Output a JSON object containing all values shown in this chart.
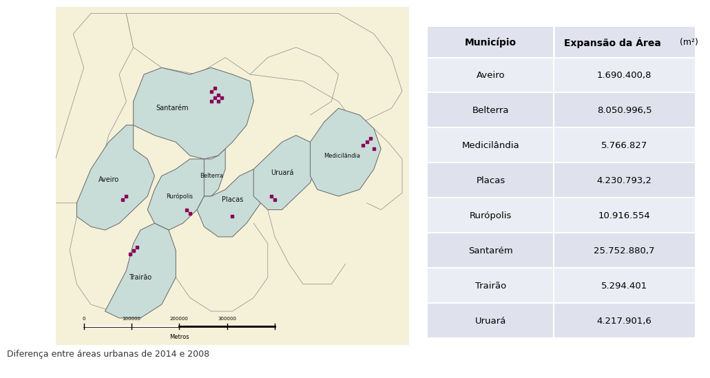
{
  "caption": "Diferença entre áreas urbanas de 2014 e 2008",
  "caption_fontsize": 9,
  "caption_color": "#333333",
  "table_header_col1": "Município",
  "table_header_col2_bold": "Expansão da Área",
  "table_header_col2_normal": " (m²)",
  "table_rows": [
    [
      "Aveiro",
      "1.690.400,8"
    ],
    [
      "Belterra",
      "8.050.996,5"
    ],
    [
      "Medicilândia",
      "5.766.827"
    ],
    [
      "Placas",
      "4.230.793,2"
    ],
    [
      "Rurópolis",
      "10.916.554"
    ],
    [
      "Santarém",
      "25.752.880,7"
    ],
    [
      "Trairão",
      "5.294.401"
    ],
    [
      "Uruará",
      "4.217.901,6"
    ]
  ],
  "table_row_colors": [
    "#ebedf4",
    "#dfe1ec",
    "#ebedf4",
    "#dfe1ec",
    "#ebedf4",
    "#dfe1ec",
    "#ebedf4",
    "#dfe1ec"
  ],
  "table_header_bg": "#e0e2ee",
  "table_border_color": "#ffffff",
  "table_text_color": "#000000",
  "table_fontsize": 10,
  "map_outer_bg": "#f5f0d8",
  "map_muni_fill": "#c8dcd8",
  "map_muni_edge": "#666666",
  "map_region_edge": "#888888",
  "map_dot_color": "#880055",
  "background_color": "#ffffff"
}
